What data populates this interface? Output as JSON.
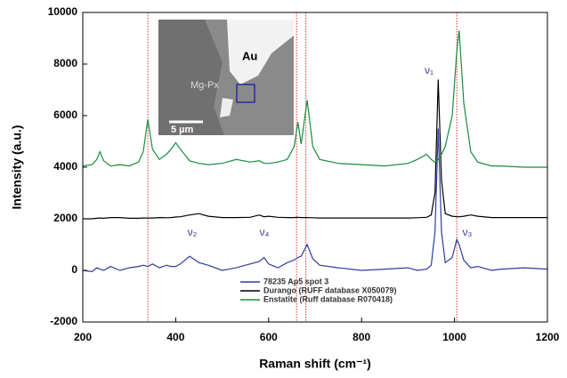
{
  "chart_data": {
    "type": "line",
    "xlabel": "Raman shift (cm⁻¹)",
    "ylabel": "Intensity (a.u.)",
    "x": [
      200,
      220,
      230,
      237,
      245,
      260,
      280,
      300,
      320,
      330,
      340,
      350,
      365,
      380,
      390,
      400,
      410,
      430,
      450,
      470,
      500,
      530,
      560,
      580,
      590,
      600,
      620,
      640,
      655,
      663,
      670,
      683,
      695,
      710,
      750,
      800,
      850,
      900,
      920,
      940,
      950,
      958,
      965,
      972,
      980,
      995,
      1005,
      1010,
      1020,
      1035,
      1050,
      1080,
      1100,
      1150,
      1200
    ],
    "series": [
      {
        "name": "78235 Ap5 spot 3",
        "color": "#2e3c9c",
        "values": [
          0,
          -50,
          100,
          50,
          0,
          150,
          0,
          100,
          150,
          200,
          150,
          250,
          100,
          200,
          150,
          150,
          250,
          550,
          300,
          200,
          0,
          100,
          250,
          350,
          500,
          250,
          100,
          300,
          400,
          500,
          550,
          1000,
          450,
          200,
          100,
          0,
          50,
          100,
          0,
          50,
          200,
          1500,
          5500,
          1500,
          300,
          500,
          1200,
          1000,
          400,
          100,
          150,
          0,
          50,
          100,
          50
        ]
      },
      {
        "name": "Durango (RUFF database X050079)",
        "color": "#000000",
        "values": [
          2000,
          2000,
          2020,
          2030,
          2020,
          2050,
          2050,
          2020,
          2020,
          2030,
          2030,
          2030,
          2050,
          2040,
          2050,
          2070,
          2080,
          2150,
          2200,
          2100,
          2050,
          2050,
          2060,
          2150,
          2080,
          2100,
          2060,
          2050,
          2050,
          2060,
          2050,
          2050,
          2040,
          2030,
          2030,
          2030,
          2030,
          2030,
          2040,
          2060,
          2150,
          3000,
          7400,
          3500,
          2200,
          2100,
          2080,
          2080,
          2100,
          2150,
          2100,
          2050,
          2050,
          2050,
          2050
        ]
      },
      {
        "name": "Enstatite (Ruff database R070418)",
        "color": "#1a8a3e",
        "values": [
          4050,
          4100,
          4300,
          4600,
          4250,
          4050,
          4100,
          4050,
          4200,
          4600,
          5850,
          4700,
          4300,
          4500,
          4700,
          4950,
          4700,
          4250,
          4150,
          4100,
          4150,
          4300,
          4200,
          4250,
          4150,
          4150,
          4200,
          4300,
          4800,
          5750,
          4900,
          6600,
          4800,
          4300,
          4150,
          4100,
          4050,
          4150,
          4300,
          4500,
          4300,
          4200,
          4300,
          4500,
          4800,
          6000,
          8500,
          9300,
          6500,
          4600,
          4200,
          4050,
          4050,
          4000,
          4000
        ]
      }
    ],
    "xlim": [
      200,
      1200
    ],
    "xticks": [
      200,
      400,
      600,
      800,
      1000,
      1200
    ],
    "ylim": [
      -2000,
      10000
    ],
    "yticks": [
      -2000,
      0,
      2000,
      4000,
      6000,
      8000,
      10000
    ],
    "vlines": [
      340,
      660,
      680,
      1005
    ],
    "vline_color": "#e83030",
    "annotations": [
      "ν₁",
      "ν₂",
      "ν₄",
      "ν₃"
    ],
    "legend": "lower center",
    "inset": {
      "labels": [
        "Au",
        "Mg-Px",
        "5 µm"
      ]
    }
  }
}
